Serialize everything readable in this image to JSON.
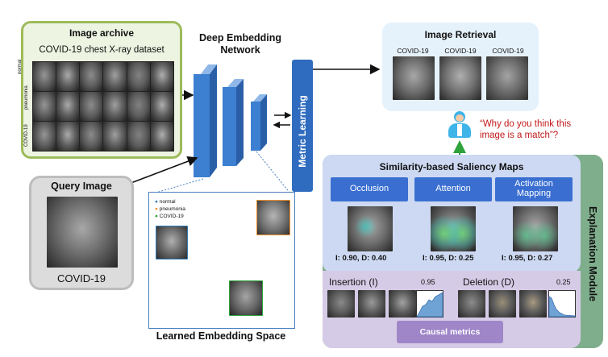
{
  "colors": {
    "archive_border": "#9dbb5a",
    "archive_fill": "#eef4e2",
    "query_fill": "#dcdcdc",
    "retrieval_fill": "#e6f2fb",
    "saliency_fill": "#cdd9f2",
    "module_fill": "#7fae8c",
    "causal_fill": "#d6cbe6",
    "causal_btn": "#9f86c8",
    "network_blue": "#3d7fd1",
    "metric_blue": "#2f6cbf",
    "quote_red": "#c21a1a"
  },
  "archive": {
    "title": "Image archive",
    "subtitle": "COVID-19 chest X-ray dataset",
    "row_labels": [
      "normal",
      "pneumonia",
      "COVID-19"
    ]
  },
  "network": {
    "title_line1": "Deep Embedding",
    "title_line2": "Network",
    "metric_label": "Metric Learning"
  },
  "query": {
    "title": "Query Image",
    "label": "COVID-19"
  },
  "embedding": {
    "title": "Learned Embedding Space",
    "legend": [
      "normal",
      "pneumonia",
      "COVID-19"
    ],
    "legend_colors": [
      "#2d7bb8",
      "#f2922e",
      "#2da33a"
    ]
  },
  "retrieval": {
    "title": "Image Retrieval",
    "labels": [
      "COVID-19",
      "COVID-19",
      "COVID-19"
    ]
  },
  "question": {
    "line1": "“Why do you think this",
    "line2": "image is a match”?"
  },
  "saliency": {
    "title": "Similarity-based Saliency Maps",
    "methods": [
      {
        "label_line1": "Occlusion",
        "label_line2": "",
        "score": "I: 0.90, D: 0.40"
      },
      {
        "label_line1": "Attention",
        "label_line2": "",
        "score": "I: 0.95, D: 0.25"
      },
      {
        "label_line1": "Activation",
        "label_line2": "Mapping",
        "score": "I: 0.95, D: 0.27"
      }
    ]
  },
  "causal": {
    "insertion_label": "Insertion (I)",
    "insertion_value": "0.95",
    "deletion_label": "Deletion (D)",
    "deletion_value": "0.25",
    "button": "Causal metrics"
  },
  "module_label": "Explanation Module"
}
